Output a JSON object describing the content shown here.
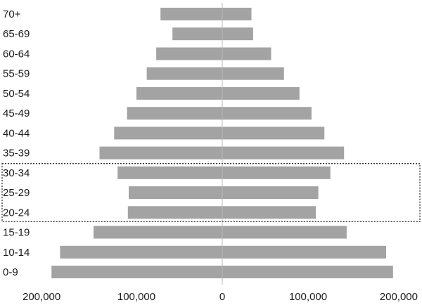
{
  "chart_data": {
    "type": "bar",
    "orientation": "horizontal",
    "layout": "population-pyramid",
    "categories": [
      "70+",
      "65-69",
      "60-64",
      "55-59",
      "50-54",
      "45-49",
      "40-44",
      "35-39",
      "30-34",
      "25-29",
      "20-24",
      "15-19",
      "10-14",
      "0-9"
    ],
    "series": [
      {
        "side": "left",
        "values": [
          72000,
          58000,
          77000,
          88000,
          100000,
          111000,
          126000,
          143000,
          122000,
          109000,
          110000,
          150000,
          189000,
          199000
        ]
      },
      {
        "side": "right",
        "values": [
          34000,
          36000,
          57000,
          72000,
          90000,
          104000,
          119000,
          142000,
          126000,
          112000,
          109000,
          145000,
          191000,
          199000
        ]
      }
    ],
    "xlim": [
      -200000,
      200000
    ],
    "x_ticks": [
      {
        "value": -200000,
        "label": "200,000"
      },
      {
        "value": -100000,
        "label": "100,000"
      },
      {
        "value": 0,
        "label": "0"
      },
      {
        "value": 100000,
        "label": "100,000"
      },
      {
        "value": 200000,
        "label": "200,000"
      }
    ],
    "highlighted_categories": [
      "30-34",
      "25-29",
      "20-24"
    ],
    "grid": false,
    "colors": {
      "bar": "#a3a3a3",
      "axis": "#b8b8b8",
      "highlight_border": "#333333"
    }
  }
}
